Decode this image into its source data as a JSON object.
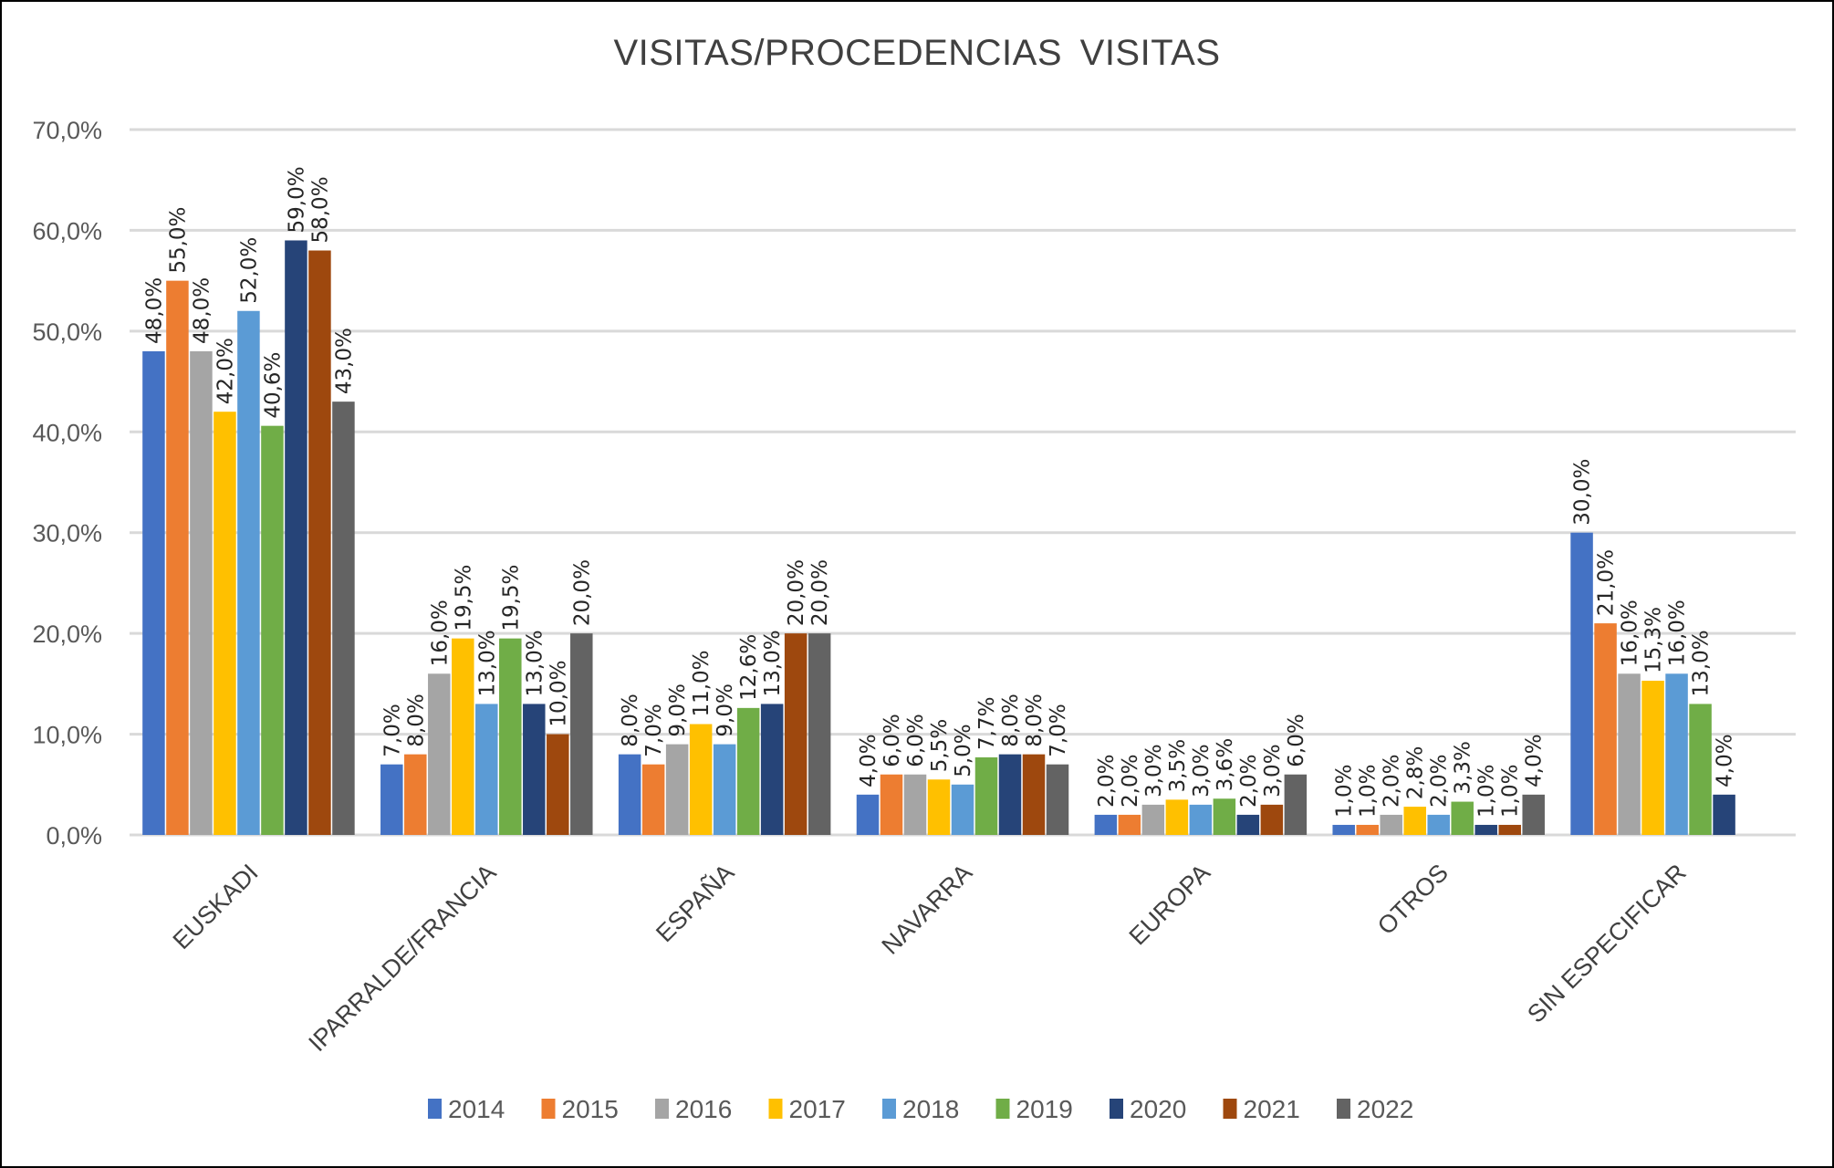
{
  "chart_data": {
    "type": "bar",
    "title": "VISITAS/PROCEDENCIAS  VISITAS",
    "xlabel": "",
    "ylabel": "",
    "ylim": [
      0,
      70
    ],
    "yticks": [
      0,
      10,
      20,
      30,
      40,
      50,
      60,
      70
    ],
    "ytick_labels": [
      "0,0%",
      "10,0%",
      "20,0%",
      "30,0%",
      "40,0%",
      "50,0%",
      "60,0%",
      "70,0%"
    ],
    "grid": true,
    "legend_position": "bottom",
    "categories": [
      "EUSKADI",
      "IPARRALDE/FRANCIA",
      "ESPAÑA",
      "NAVARRA",
      "EUROPA",
      "OTROS",
      "SIN ESPECIFICAR"
    ],
    "series": [
      {
        "name": "2014",
        "color": "#4472C4",
        "values": [
          48.0,
          7.0,
          8.0,
          4.0,
          2.0,
          1.0,
          30.0
        ],
        "labels": [
          "48,0%",
          "7,0%",
          "8,0%",
          "4,0%",
          "2,0%",
          "1,0%",
          "30,0%"
        ]
      },
      {
        "name": "2015",
        "color": "#ED7D31",
        "values": [
          55.0,
          8.0,
          7.0,
          6.0,
          2.0,
          1.0,
          21.0
        ],
        "labels": [
          "55,0%",
          "8,0%",
          "7,0%",
          "6,0%",
          "2,0%",
          "1,0%",
          "21,0%"
        ]
      },
      {
        "name": "2016",
        "color": "#A5A5A5",
        "values": [
          48.0,
          16.0,
          9.0,
          6.0,
          3.0,
          2.0,
          16.0
        ],
        "labels": [
          "48,0%",
          "16,0%",
          "9,0%",
          "6,0%",
          "3,0%",
          "2,0%",
          "16,0%"
        ]
      },
      {
        "name": "2017",
        "color": "#FFC000",
        "values": [
          42.0,
          19.5,
          11.0,
          5.5,
          3.5,
          2.8,
          15.3
        ],
        "labels": [
          "42,0%",
          "19,5%",
          "11,0%",
          "5,5%",
          "3,5%",
          "2,8%",
          "15,3%"
        ]
      },
      {
        "name": "2018",
        "color": "#5B9BD5",
        "values": [
          52.0,
          13.0,
          9.0,
          5.0,
          3.0,
          2.0,
          16.0
        ],
        "labels": [
          "52,0%",
          "13,0%",
          "9,0%",
          "5,0%",
          "3,0%",
          "2,0%",
          "16,0%"
        ]
      },
      {
        "name": "2019",
        "color": "#70AD47",
        "values": [
          40.6,
          19.5,
          12.6,
          7.7,
          3.6,
          3.3,
          13.0
        ],
        "labels": [
          "40,6%",
          "19,5%",
          "12,6%",
          "7,7%",
          "3,6%",
          "3,3%",
          "13,0%"
        ]
      },
      {
        "name": "2020",
        "color": "#264478",
        "values": [
          59.0,
          13.0,
          13.0,
          8.0,
          2.0,
          1.0,
          4.0
        ],
        "labels": [
          "59,0%",
          "13,0%",
          "13,0%",
          "8,0%",
          "2,0%",
          "1,0%",
          "4,0%"
        ]
      },
      {
        "name": "2021",
        "color": "#9E480E",
        "values": [
          58.0,
          10.0,
          20.0,
          8.0,
          3.0,
          1.0,
          null
        ],
        "labels": [
          "58,0%",
          "10,0%",
          "20,0%",
          "8,0%",
          "3,0%",
          "1,0%",
          null
        ]
      },
      {
        "name": "2022",
        "color": "#636363",
        "values": [
          43.0,
          20.0,
          20.0,
          7.0,
          6.0,
          4.0,
          null
        ],
        "labels": [
          "43,0%",
          "20,0%",
          "20,0%",
          "7,0%",
          "6,0%",
          "4,0%",
          null
        ]
      }
    ]
  }
}
